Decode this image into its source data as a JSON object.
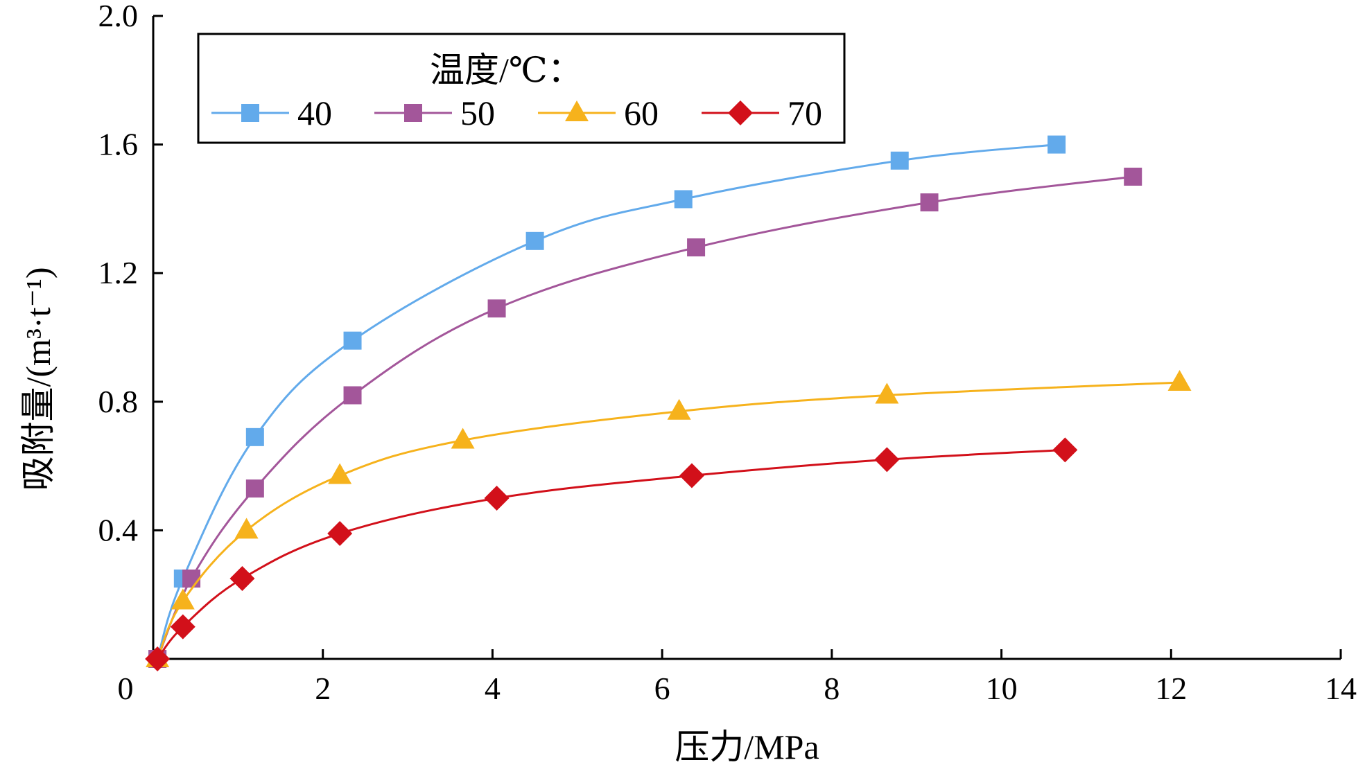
{
  "chart_data": {
    "type": "line",
    "xlabel": "压力/MPa",
    "ylabel": "吸附量/(m³·t⁻¹)",
    "xlim": [
      0,
      14
    ],
    "ylim": [
      0,
      2.0
    ],
    "x_ticks": [
      "0",
      "2",
      "4",
      "6",
      "8",
      "10",
      "12",
      "14"
    ],
    "y_ticks": [
      "0.4",
      "0.8",
      "1.2",
      "1.6",
      "2.0"
    ],
    "grid": false,
    "legend": {
      "title": "温度/℃：",
      "placement": "top-left"
    },
    "series": [
      {
        "name": "40",
        "color": "#62AAEB",
        "marker": "square",
        "points": [
          [
            0.05,
            0.0
          ],
          [
            0.35,
            0.25
          ],
          [
            1.2,
            0.69
          ],
          [
            2.35,
            0.99
          ],
          [
            4.5,
            1.3
          ],
          [
            6.25,
            1.43
          ],
          [
            8.8,
            1.55
          ],
          [
            10.65,
            1.6
          ]
        ]
      },
      {
        "name": "50",
        "color": "#A3569A",
        "marker": "square",
        "points": [
          [
            0.05,
            0.0
          ],
          [
            0.45,
            0.25
          ],
          [
            1.2,
            0.53
          ],
          [
            2.35,
            0.82
          ],
          [
            4.05,
            1.09
          ],
          [
            6.4,
            1.28
          ],
          [
            9.15,
            1.42
          ],
          [
            11.55,
            1.5
          ]
        ]
      },
      {
        "name": "60",
        "color": "#F6B21C",
        "marker": "triangle",
        "points": [
          [
            0.05,
            0.0
          ],
          [
            0.35,
            0.18
          ],
          [
            1.1,
            0.4
          ],
          [
            2.2,
            0.57
          ],
          [
            3.65,
            0.68
          ],
          [
            6.2,
            0.77
          ],
          [
            8.65,
            0.82
          ],
          [
            12.1,
            0.86
          ]
        ]
      },
      {
        "name": "70",
        "color": "#D2101A",
        "marker": "diamond",
        "points": [
          [
            0.05,
            0.0
          ],
          [
            0.35,
            0.1
          ],
          [
            1.05,
            0.25
          ],
          [
            2.2,
            0.39
          ],
          [
            4.05,
            0.5
          ],
          [
            6.35,
            0.57
          ],
          [
            8.65,
            0.62
          ],
          [
            10.75,
            0.65
          ]
        ]
      }
    ]
  }
}
